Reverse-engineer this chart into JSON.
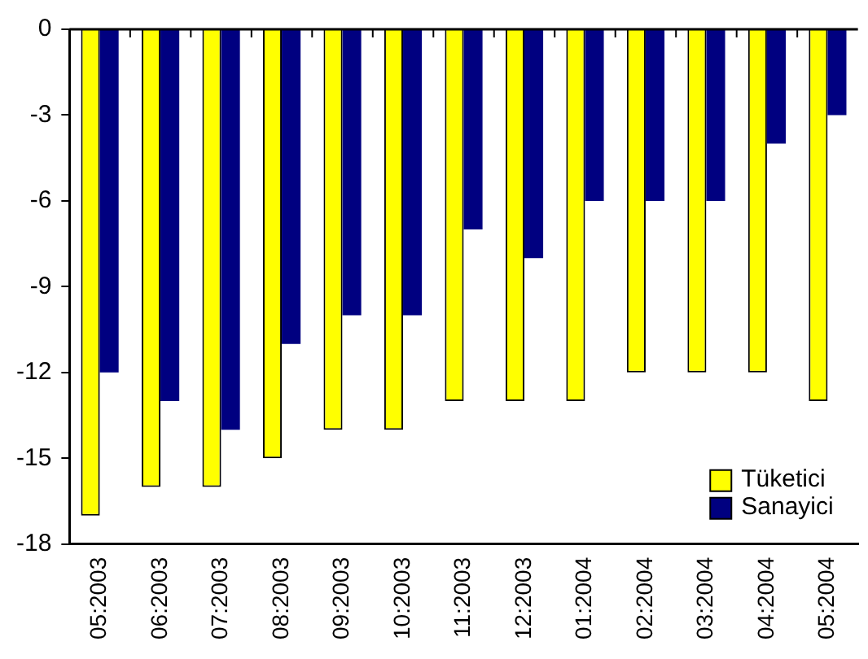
{
  "chart_data": {
    "type": "bar",
    "categories": [
      "05:2003",
      "06:2003",
      "07:2003",
      "08:2003",
      "09:2003",
      "10:2003",
      "11:2003",
      "12:2003",
      "01:2004",
      "02:2004",
      "03:2004",
      "04:2004",
      "05:2004"
    ],
    "series": [
      {
        "name": "Tüketici",
        "color": "#ffff00",
        "values": [
          -17,
          -16,
          -16,
          -15,
          -14,
          -14,
          -13,
          -13,
          -13,
          -12,
          -12,
          -12,
          -13
        ]
      },
      {
        "name": "Sanayici",
        "color": "#000080",
        "values": [
          -12,
          -13,
          -14,
          -11,
          -10,
          -10,
          -7,
          -8,
          -6,
          -6,
          -6,
          -4,
          -3
        ]
      }
    ],
    "ylim": [
      -18,
      0
    ],
    "yticks": [
      0,
      -3,
      -6,
      -9,
      -12,
      -15,
      -18
    ],
    "grid": false,
    "legend": "bottom right"
  }
}
